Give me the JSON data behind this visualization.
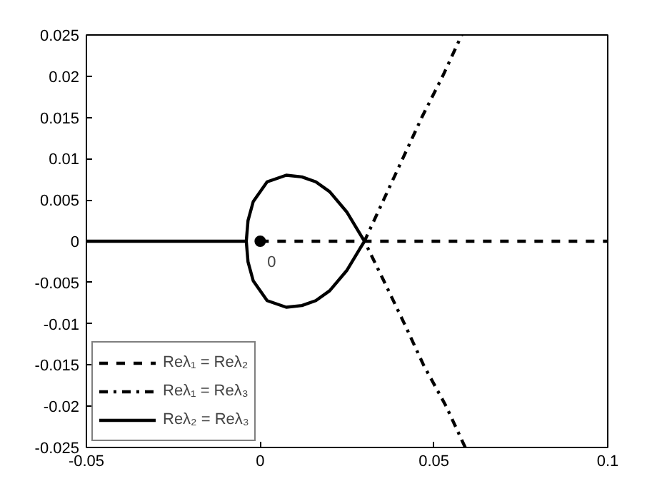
{
  "chart_data": {
    "type": "line",
    "xlim": [
      -0.05,
      0.1
    ],
    "ylim": [
      -0.025,
      0.025
    ],
    "xticks": [
      -0.05,
      0,
      0.05,
      0.1
    ],
    "yticks": [
      -0.025,
      -0.02,
      -0.015,
      -0.01,
      -0.005,
      0,
      0.005,
      0.01,
      0.015,
      0.02,
      0.025
    ],
    "grid": false,
    "legend": "bottom left",
    "series": [
      {
        "name": "Reλ₁ = Reλ₂",
        "color": "#000000",
        "line_style": "dashed",
        "x": [
          0,
          0.1
        ],
        "values": [
          0,
          0
        ]
      },
      {
        "name": "Reλ₁ = Reλ₃",
        "color": "#000000",
        "line_style": "dashdot",
        "x": [
          0.059,
          0.0535,
          0.047,
          0.0415,
          0.0358,
          0.03,
          0.0355,
          0.041,
          0.0465,
          0.0525,
          0.058
        ],
        "values": [
          -0.025,
          -0.02,
          -0.015,
          -0.01,
          -0.005,
          0,
          0.005,
          0.01,
          0.015,
          0.02,
          0.025
        ]
      },
      {
        "name": "Reλ₂ = Reλ₃",
        "color": "#000000",
        "line_style": "solid",
        "x": [
          -0.05,
          -0.004,
          -0.0035,
          -0.002,
          0.002,
          0.0075,
          0.012,
          0.016,
          0.02,
          0.025,
          0.03,
          0.025,
          0.02,
          0.016,
          0.012,
          0.0075,
          0.002,
          -0.002,
          -0.0035,
          -0.004
        ],
        "values": [
          0,
          0,
          0.0025,
          0.0048,
          0.0072,
          0.008,
          0.0078,
          0.0072,
          0.006,
          0.0035,
          0,
          -0.0035,
          -0.006,
          -0.0072,
          -0.0078,
          -0.008,
          -0.0072,
          -0.0048,
          -0.0025,
          0
        ]
      },
      {
        "type": "scatter",
        "color": "#000000",
        "marker": "circle",
        "x": [
          0
        ],
        "values": [
          0
        ]
      }
    ],
    "annotations": [
      {
        "text": "0",
        "x": 0,
        "y": 0
      }
    ]
  }
}
